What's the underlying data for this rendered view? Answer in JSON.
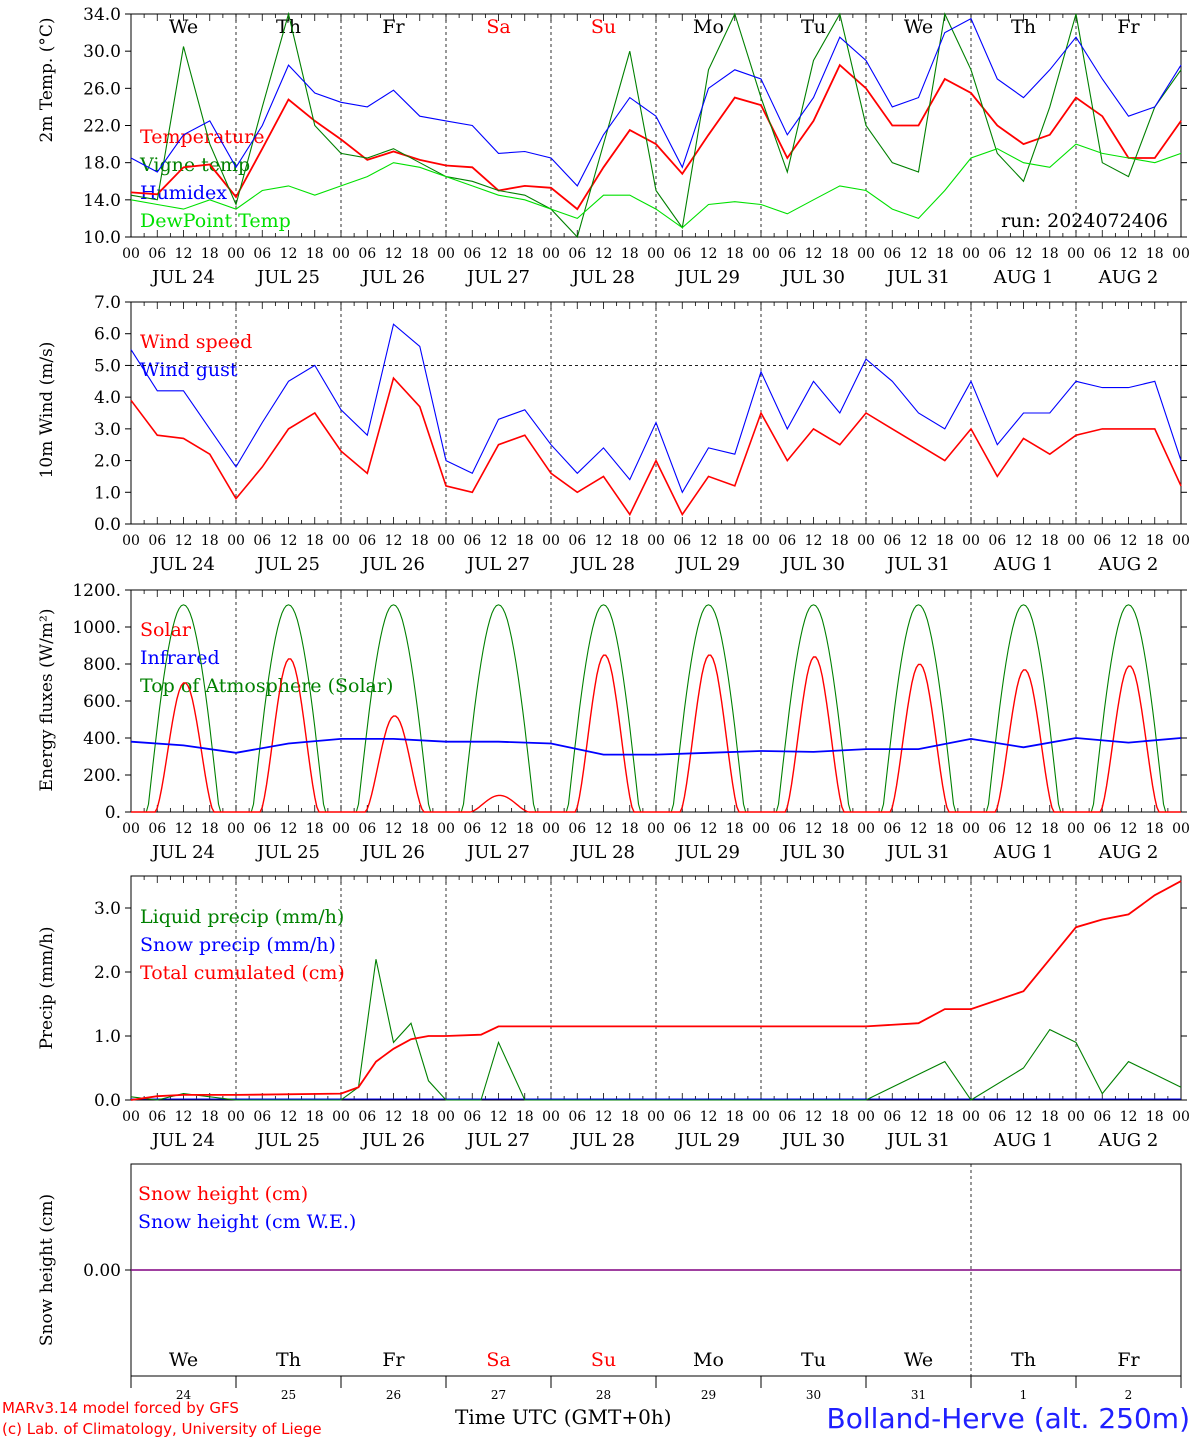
{
  "run_label": "run: 2024072406",
  "footer": {
    "model": "MARv3.14 model forced by GFS",
    "lab": "(c) Lab. of Climatology, University of Liege",
    "time_label": "Time UTC (GMT+0h)",
    "station": "Bolland-Herve (alt. 250m)"
  },
  "colors": {
    "red": "#ff0000",
    "green": "#008000",
    "blue": "#0000ff",
    "light_green": "#00e000",
    "purple": "#800080",
    "station_blue": "#2020ff",
    "day_black": "#000000",
    "day_weekend": "#ff0000"
  },
  "chart_data": [
    {
      "type": "line",
      "ylabel": "2m Temp. (°C)",
      "ylim": [
        10,
        34
      ],
      "y_ticks": [
        "34.0",
        "30.0",
        "26.0",
        "22.0",
        "18.0",
        "14.0",
        "10.0"
      ],
      "x_hour_ticks": [
        "00",
        "06",
        "12",
        "18"
      ],
      "date_labels": [
        "JUL 24",
        "JUL 25",
        "JUL 26",
        "JUL 27",
        "JUL 28",
        "JUL 29",
        "JUL 30",
        "JUL 31",
        "AUG  1",
        "AUG  2"
      ],
      "day_labels": [
        "We",
        "Th",
        "Fr",
        "Sa",
        "Su",
        "Mo",
        "Tu",
        "We",
        "Th",
        "Fr"
      ],
      "weekend_days": [
        "Sa",
        "Su"
      ],
      "legend": [
        {
          "label": "Temperature",
          "color": "#ff0000"
        },
        {
          "label": "Vigne temp",
          "color": "#008000"
        },
        {
          "label": "Humidex",
          "color": "#0000ff"
        },
        {
          "label": "DewPoint Temp",
          "color": "#00e000"
        }
      ],
      "x_hours": [
        0,
        6,
        12,
        18,
        24,
        30,
        36,
        42,
        48,
        54,
        60,
        66,
        72,
        78,
        84,
        90,
        96,
        102,
        108,
        114,
        120,
        126,
        132,
        138,
        144,
        150,
        156,
        162,
        168,
        174,
        180,
        186,
        192,
        198,
        204,
        210,
        216,
        222,
        228,
        234,
        240
      ],
      "series": [
        {
          "name": "Temperature",
          "color": "#ff0000",
          "values": [
            14.8,
            14.6,
            17.5,
            17.8,
            14.3,
            19.5,
            24.8,
            22.5,
            20.5,
            18.3,
            19.2,
            18.3,
            17.7,
            17.5,
            15.0,
            15.5,
            15.3,
            13.0,
            17.5,
            21.5,
            20.0,
            16.8,
            21.0,
            25.0,
            24.2,
            18.5,
            22.5,
            28.5,
            26.0,
            22.0,
            22.0,
            27.0,
            25.5,
            22.0,
            20.0,
            21.0,
            25.0,
            23.0,
            18.5,
            18.5,
            22.5
          ]
        },
        {
          "name": "Vigne temp",
          "color": "#008000",
          "values": [
            14.5,
            14.0,
            30.5,
            20.0,
            13.5,
            24.0,
            34.0,
            22.0,
            19.0,
            18.5,
            19.5,
            18.0,
            16.5,
            16.0,
            15.0,
            14.5,
            13.0,
            10.0,
            20.0,
            30.0,
            15.0,
            11.0,
            28.0,
            34.0,
            25.0,
            17.0,
            29.0,
            34.0,
            22.0,
            18.0,
            17.0,
            34.0,
            28.0,
            19.0,
            16.0,
            24.0,
            34.0,
            18.0,
            16.5,
            24.0,
            28.0
          ]
        },
        {
          "name": "Humidex",
          "color": "#0000ff",
          "values": [
            18.5,
            17.0,
            21.0,
            22.5,
            17.5,
            22.0,
            28.5,
            25.5,
            24.5,
            24.0,
            25.8,
            23.0,
            22.5,
            22.0,
            19.0,
            19.2,
            18.5,
            15.5,
            21.0,
            25.0,
            23.0,
            17.5,
            26.0,
            28.0,
            27.0,
            21.0,
            25.0,
            31.5,
            29.0,
            24.0,
            25.0,
            32.0,
            33.5,
            27.0,
            25.0,
            28.0,
            31.5,
            27.0,
            23.0,
            24.0,
            28.5
          ]
        },
        {
          "name": "DewPoint Temp",
          "color": "#00e000",
          "values": [
            14.0,
            13.5,
            13.0,
            14.0,
            13.0,
            15.0,
            15.5,
            14.5,
            15.5,
            16.5,
            18.0,
            17.5,
            16.5,
            15.5,
            14.5,
            14.0,
            13.0,
            12.0,
            14.5,
            14.5,
            13.0,
            11.0,
            13.5,
            13.8,
            13.5,
            12.5,
            14.0,
            15.5,
            15.0,
            13.0,
            12.0,
            15.0,
            18.5,
            19.5,
            18.0,
            17.5,
            20.0,
            19.0,
            18.5,
            18.0,
            19.0
          ]
        }
      ]
    },
    {
      "type": "line",
      "ylabel": "10m Wind (m/s)",
      "ylim": [
        0,
        7
      ],
      "y_ticks": [
        "7.0",
        "6.0",
        "5.0",
        "4.0",
        "3.0",
        "2.0",
        "1.0",
        "0.0"
      ],
      "reference_line": 5.0,
      "legend": [
        {
          "label": "Wind speed",
          "color": "#ff0000"
        },
        {
          "label": "Wind gust",
          "color": "#0000ff"
        }
      ],
      "x_hours": [
        0,
        6,
        12,
        18,
        24,
        30,
        36,
        42,
        48,
        54,
        60,
        66,
        72,
        78,
        84,
        90,
        96,
        102,
        108,
        114,
        120,
        126,
        132,
        138,
        144,
        150,
        156,
        162,
        168,
        174,
        180,
        186,
        192,
        198,
        204,
        210,
        216,
        222,
        228,
        234,
        240
      ],
      "series": [
        {
          "name": "Wind speed",
          "color": "#ff0000",
          "values": [
            3.9,
            2.8,
            2.7,
            2.2,
            0.8,
            1.8,
            3.0,
            3.5,
            2.3,
            1.6,
            4.6,
            3.7,
            1.2,
            1.0,
            2.5,
            2.8,
            1.6,
            1.0,
            1.5,
            0.3,
            2.0,
            0.3,
            1.5,
            1.2,
            3.5,
            2.0,
            3.0,
            2.5,
            3.5,
            3.0,
            2.5,
            2.0,
            3.0,
            1.5,
            2.7,
            2.2,
            2.8,
            3.0,
            3.0,
            3.0,
            1.2
          ]
        },
        {
          "name": "Wind gust",
          "color": "#0000ff",
          "values": [
            5.5,
            4.2,
            4.2,
            3.0,
            1.8,
            3.2,
            4.5,
            5.0,
            3.6,
            2.8,
            6.3,
            5.6,
            2.0,
            1.6,
            3.3,
            3.6,
            2.5,
            1.6,
            2.4,
            1.4,
            3.2,
            1.0,
            2.4,
            2.2,
            4.8,
            3.0,
            4.5,
            3.5,
            5.2,
            4.5,
            3.5,
            3.0,
            4.5,
            2.5,
            3.5,
            3.5,
            4.5,
            4.3,
            4.3,
            4.5,
            2.0
          ]
        }
      ]
    },
    {
      "type": "line",
      "ylabel": "Energy fluxes (W/m²)",
      "ylim": [
        0,
        1200
      ],
      "y_ticks": [
        "1200.",
        "1000.",
        "800.",
        "600.",
        "400.",
        "200.",
        "0."
      ],
      "legend": [
        {
          "label": "Solar",
          "color": "#ff0000"
        },
        {
          "label": "Infrared",
          "color": "#0000ff"
        },
        {
          "label": "Top of Atmosphere (Solar)",
          "color": "#008000"
        }
      ],
      "toa_peak": 1120,
      "solar_day_peaks": [
        700,
        830,
        520,
        90,
        850,
        850,
        840,
        800,
        770,
        790
      ],
      "infrared": {
        "name": "Infrared",
        "color": "#0000ff",
        "x_hours": [
          0,
          12,
          24,
          36,
          48,
          60,
          72,
          84,
          96,
          108,
          120,
          132,
          144,
          156,
          168,
          180,
          192,
          204,
          216,
          228,
          240
        ],
        "values": [
          380,
          360,
          320,
          370,
          395,
          395,
          380,
          380,
          370,
          310,
          310,
          320,
          330,
          325,
          340,
          340,
          395,
          350,
          400,
          375,
          400
        ]
      }
    },
    {
      "type": "line",
      "ylabel": "Precip (mm/h)",
      "ylim": [
        0,
        3.5
      ],
      "y_ticks": [
        "3.0",
        "2.0",
        "1.0",
        "0.0"
      ],
      "legend": [
        {
          "label": "Liquid precip (mm/h)",
          "color": "#008000"
        },
        {
          "label": "Snow precip (mm/h)",
          "color": "#0000ff"
        },
        {
          "label": "Total cumulated (cm)",
          "color": "#ff0000"
        }
      ],
      "x_hours": [
        0,
        6,
        12,
        24,
        48,
        52,
        56,
        60,
        64,
        68,
        72,
        80,
        84,
        90,
        108,
        144,
        168,
        180,
        186,
        192,
        204,
        210,
        216,
        222,
        228,
        234,
        240
      ],
      "series": [
        {
          "name": "Liquid precip (mm/h)",
          "color": "#008000",
          "values": [
            0.05,
            0.0,
            0.1,
            0.0,
            0.0,
            0.2,
            2.2,
            0.9,
            1.2,
            0.3,
            0.0,
            0.0,
            0.9,
            0.0,
            0.0,
            0.0,
            0.0,
            0.4,
            0.6,
            0.0,
            0.5,
            1.1,
            0.9,
            0.1,
            0.6,
            0.4,
            0.2
          ]
        },
        {
          "name": "Total cumulated (cm)",
          "color": "#ff0000",
          "values": [
            0.0,
            0.06,
            0.08,
            0.08,
            0.1,
            0.2,
            0.6,
            0.8,
            0.95,
            1.0,
            1.0,
            1.02,
            1.15,
            1.15,
            1.15,
            1.15,
            1.15,
            1.2,
            1.42,
            1.42,
            1.7,
            2.2,
            2.7,
            2.82,
            2.9,
            3.2,
            3.42
          ]
        }
      ]
    },
    {
      "type": "line",
      "ylabel": "Snow height (cm)",
      "y_ticks": [
        "0.00"
      ],
      "legend": [
        {
          "label": "Snow height (cm)",
          "color": "#ff0000"
        },
        {
          "label": "Snow height (cm W.E.)",
          "color": "#0000ff"
        }
      ],
      "series": [
        {
          "name": "Snow height (cm)",
          "color": "#800080",
          "values": [
            0.0,
            0.0
          ]
        }
      ],
      "day_labels": [
        "We",
        "Th",
        "Fr",
        "Sa",
        "Su",
        "Mo",
        "Tu",
        "We",
        "Th",
        "Fr"
      ],
      "day_numbers": [
        "24",
        "25",
        "26",
        "27",
        "28",
        "29",
        "30",
        "31",
        "1",
        "2"
      ]
    }
  ]
}
